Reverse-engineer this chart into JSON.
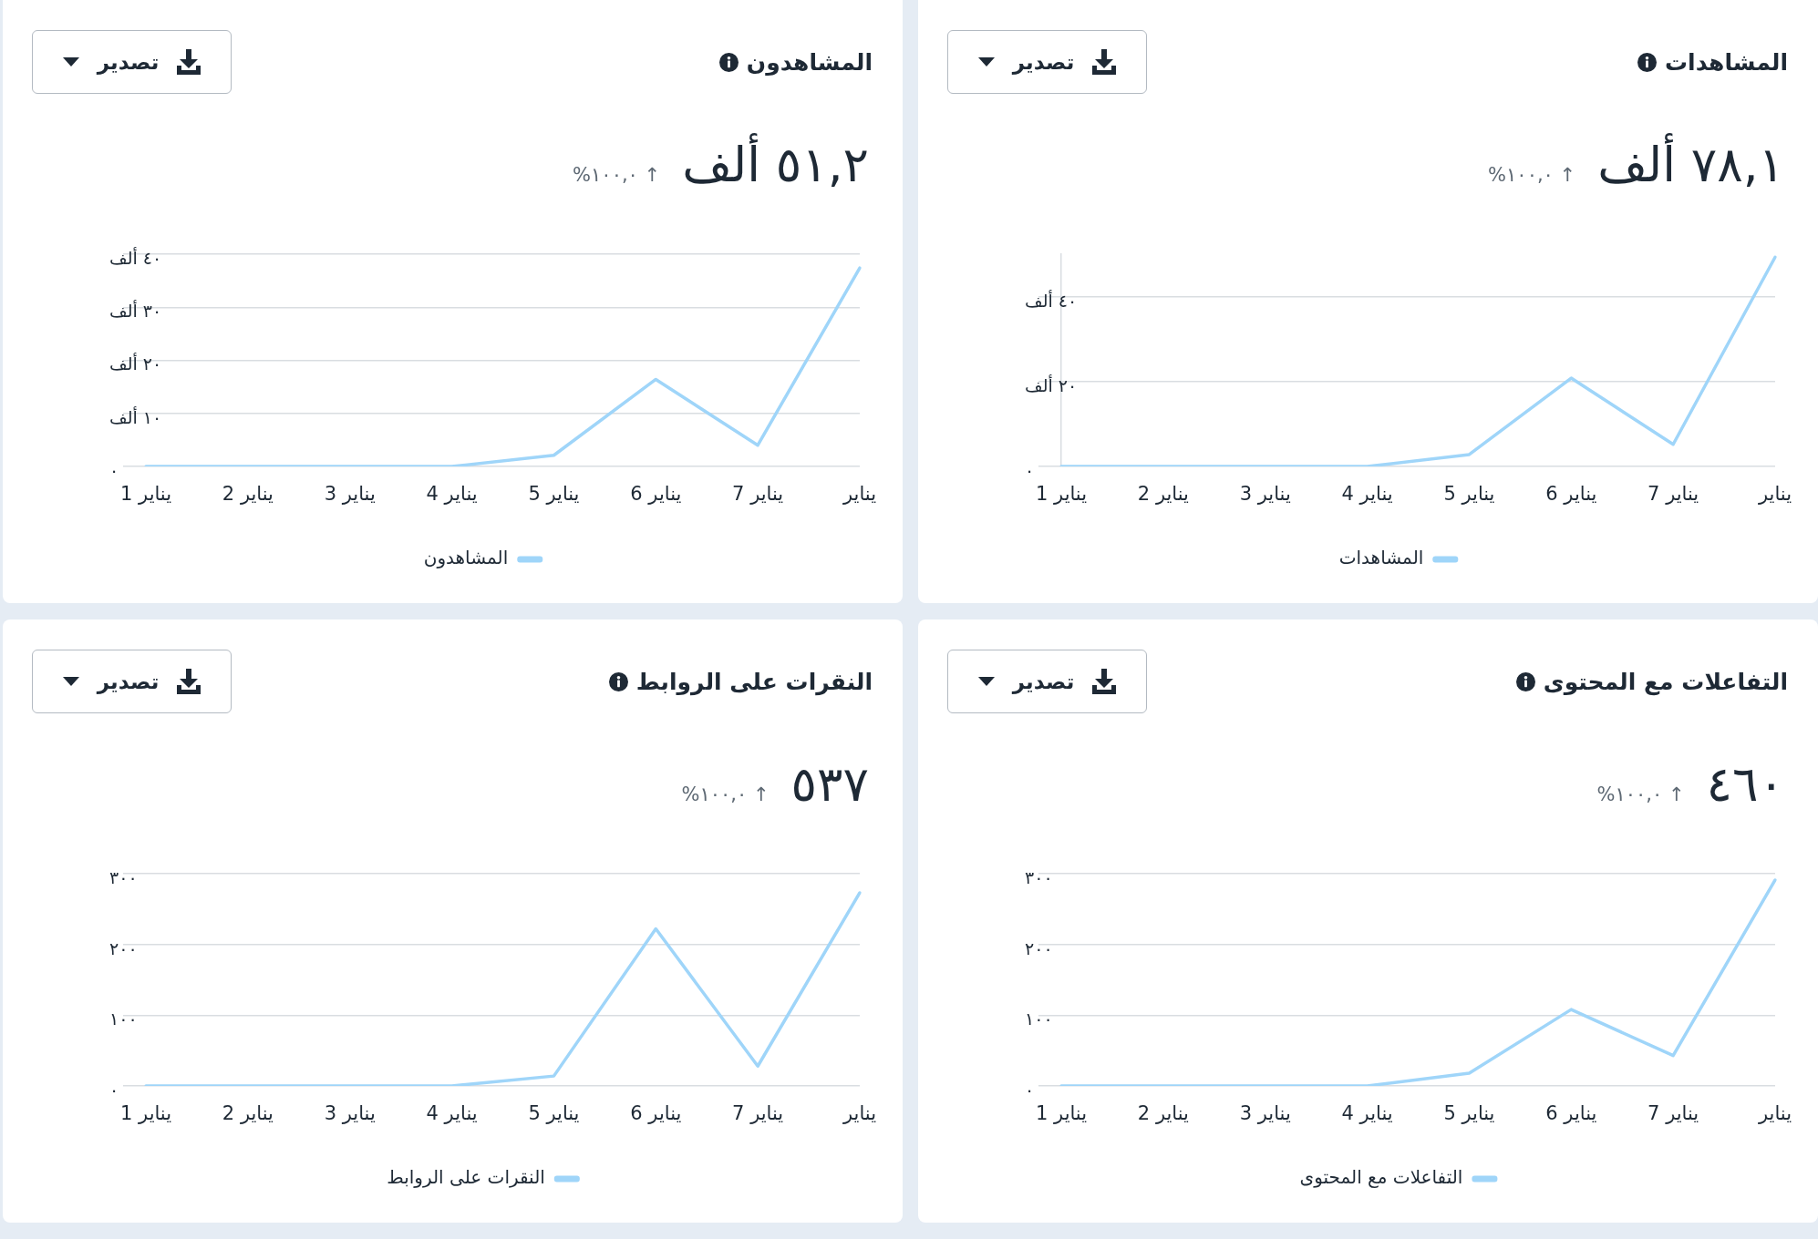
{
  "chart_data": [
    {
      "type": "line",
      "title": "المشاهدات",
      "subtitle": "٧٨,١ ألف",
      "annotations": [
        "↑ ١٠٠,٠%",
        "تصدير"
      ],
      "categories": [
        "1 يناير",
        "2 يناير",
        "3 يناير",
        "4 يناير",
        "5 يناير",
        "6 يناير",
        "7 يناير",
        "يناير"
      ],
      "series": [
        {
          "name": "المشاهدات",
          "color": "#9fd5f9",
          "values": [
            0,
            0,
            0,
            0,
            2.8,
            20.8,
            5.2,
            49.3
          ]
        }
      ],
      "ylim": [
        0,
        50
      ],
      "yticks": [
        {
          "value": 0,
          "label": "٠"
        },
        {
          "value": 20,
          "label": "٢٠ ألف"
        },
        {
          "value": 40,
          "label": "٤٠ ألف"
        }
      ],
      "grid": "y",
      "legend": "bottom",
      "marker": "none"
    },
    {
      "type": "line",
      "title": "المشاهدون",
      "subtitle": "٥١,٢ ألف",
      "annotations": [
        "↑ ١٠٠,٠%",
        "تصدير"
      ],
      "categories": [
        "1 يناير",
        "2 يناير",
        "3 يناير",
        "4 يناير",
        "5 يناير",
        "6 يناير",
        "7 يناير",
        "يناير"
      ],
      "series": [
        {
          "name": "المشاهدون",
          "color": "#9fd5f9",
          "values": [
            0,
            0,
            0,
            0,
            2.1,
            16.4,
            4,
            37.4
          ]
        }
      ],
      "ylim": [
        0,
        40
      ],
      "yticks": [
        {
          "value": 0,
          "label": "٠"
        },
        {
          "value": 10,
          "label": "١٠ ألف"
        },
        {
          "value": 20,
          "label": "٢٠ ألف"
        },
        {
          "value": 30,
          "label": "٣٠ ألف"
        },
        {
          "value": 40,
          "label": "٤٠ ألف"
        }
      ],
      "grid": "y",
      "legend": "bottom",
      "marker": "none"
    },
    {
      "type": "line",
      "title": "التفاعلات مع المحتوى",
      "subtitle": "٤٦٠",
      "annotations": [
        "↑ ١٠٠,٠%",
        "تصدير"
      ],
      "categories": [
        "1 يناير",
        "2 يناير",
        "3 يناير",
        "4 يناير",
        "5 يناير",
        "6 يناير",
        "7 يناير",
        "يناير"
      ],
      "series": [
        {
          "name": "التفاعلات مع المحتوى",
          "color": "#9fd5f9",
          "values": [
            0,
            0,
            0,
            0,
            18,
            108,
            43,
            291
          ]
        }
      ],
      "ylim": [
        0,
        300
      ],
      "yticks": [
        {
          "value": 0,
          "label": "٠"
        },
        {
          "value": 100,
          "label": "١٠٠"
        },
        {
          "value": 200,
          "label": "٢٠٠"
        },
        {
          "value": 300,
          "label": "٣٠٠"
        }
      ],
      "grid": "y",
      "legend": "bottom",
      "marker": "none"
    },
    {
      "type": "line",
      "title": "النقرات على الروابط",
      "subtitle": "٥٣٧",
      "annotations": [
        "↑ ١٠٠,٠%",
        "تصدير"
      ],
      "categories": [
        "1 يناير",
        "2 يناير",
        "3 يناير",
        "4 يناير",
        "5 يناير",
        "6 يناير",
        "7 يناير",
        "يناير"
      ],
      "series": [
        {
          "name": "النقرات على الروابط",
          "color": "#9fd5f9",
          "values": [
            0,
            0,
            0,
            0,
            14,
            222,
            28,
            273
          ]
        }
      ],
      "ylim": [
        0,
        300
      ],
      "yticks": [
        {
          "value": 0,
          "label": "٠"
        },
        {
          "value": 100,
          "label": "١٠٠"
        },
        {
          "value": 200,
          "label": "٢٠٠"
        },
        {
          "value": 300,
          "label": "٣٠٠"
        }
      ],
      "grid": "y",
      "legend": "bottom",
      "marker": "none"
    }
  ]
}
